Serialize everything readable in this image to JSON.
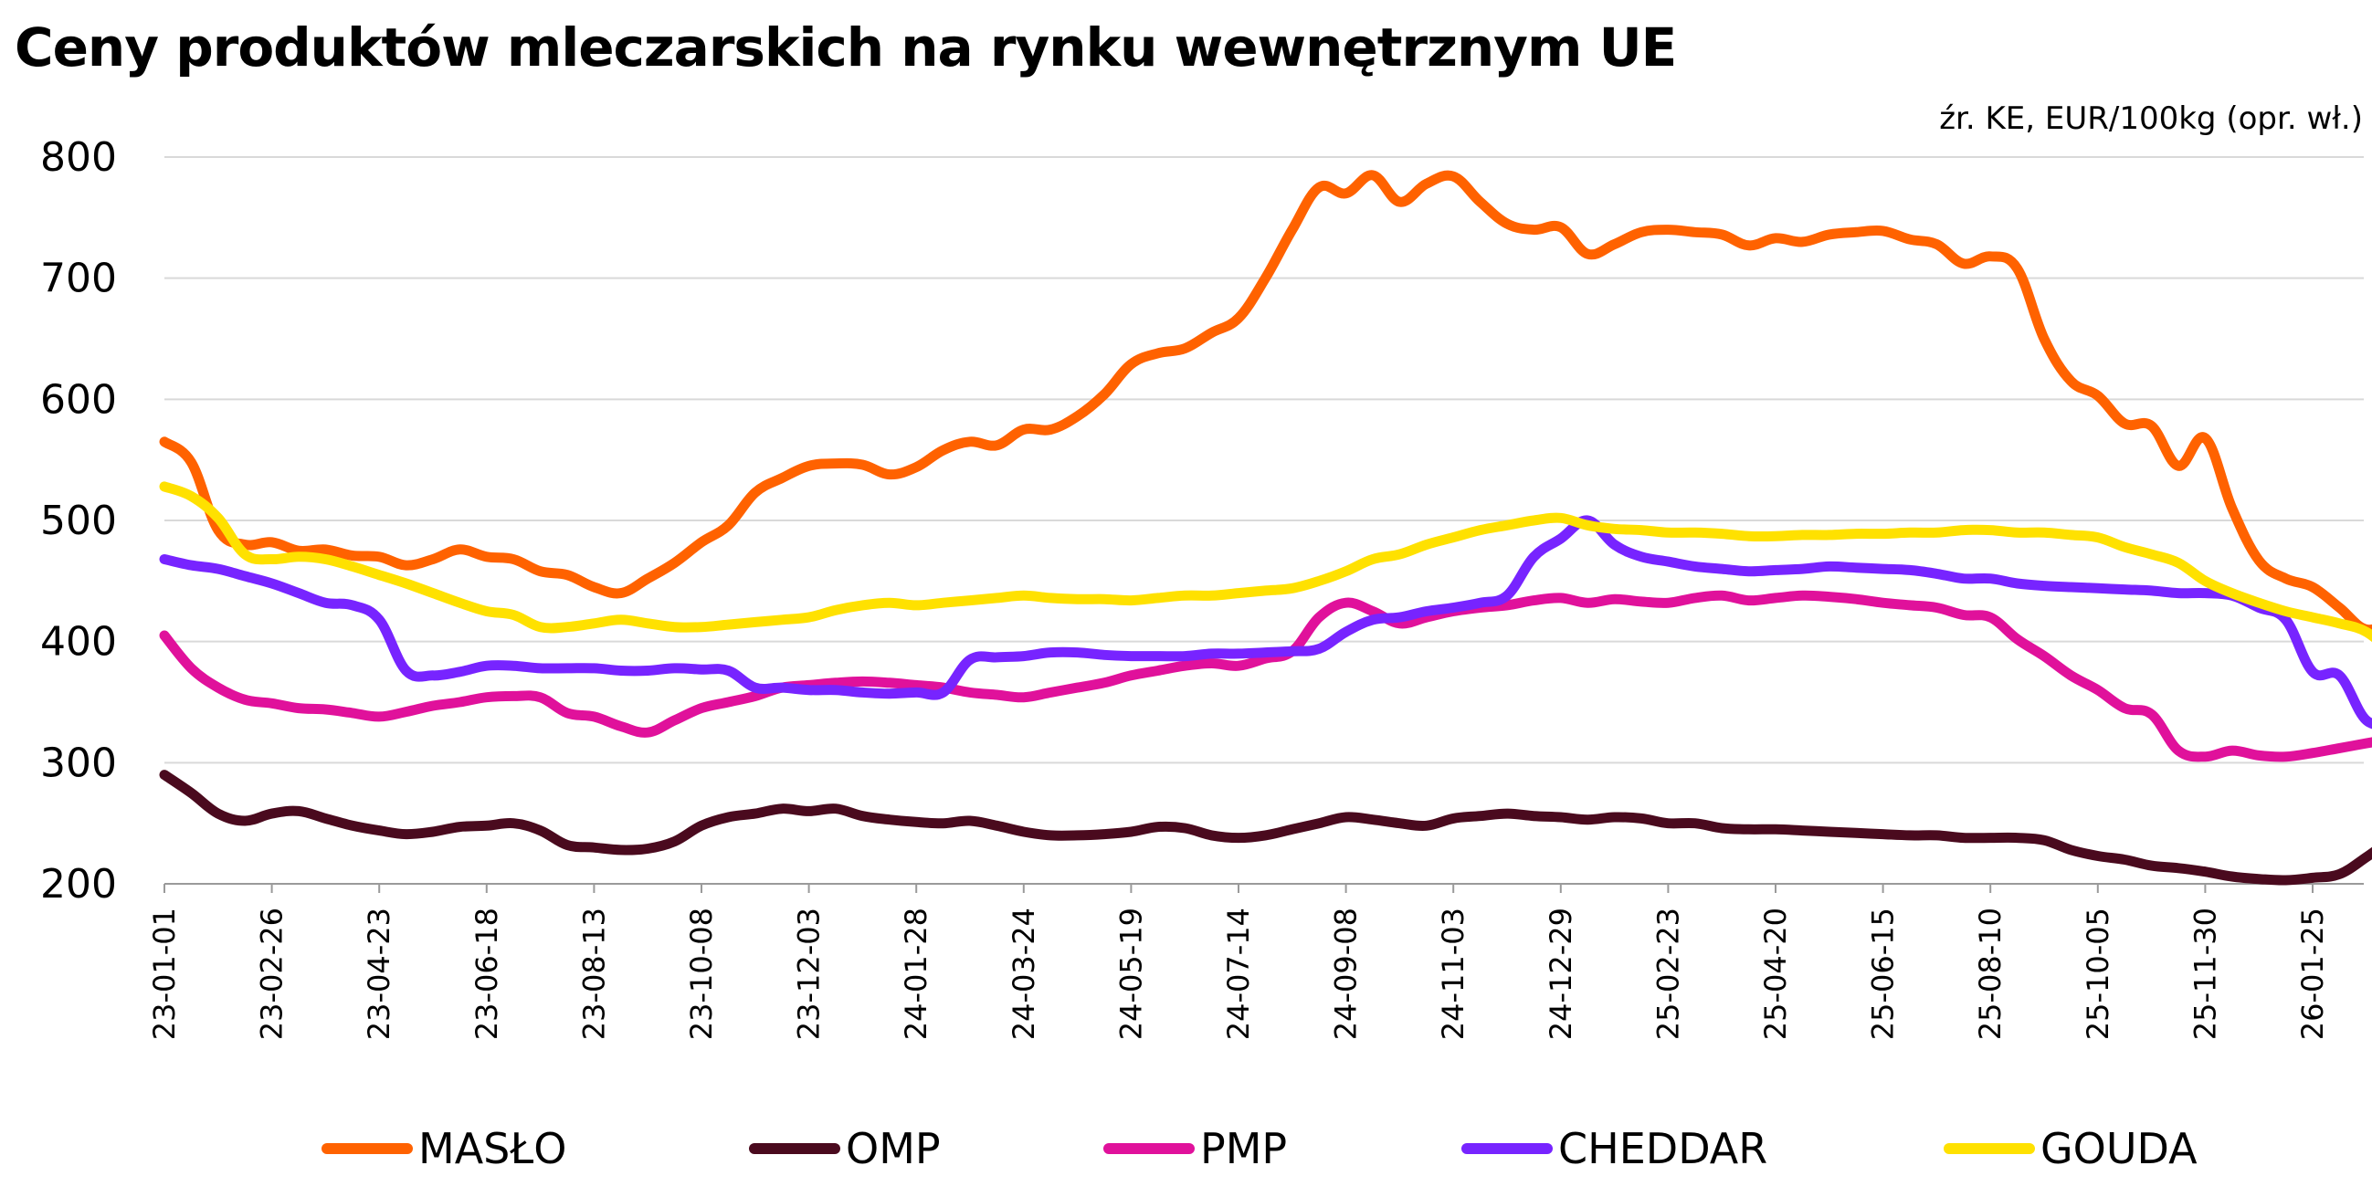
{
  "title": "Ceny produktów mleczarskich na rynku wewnętrznym UE",
  "source": "źr. KE, EUR/100kg (opr. wł.)",
  "chart_data": {
    "type": "line",
    "title": "Ceny produktów mleczarskich na rynku wewnętrznym UE",
    "ylabel": "",
    "xlabel": "",
    "ylim": [
      200,
      800
    ],
    "yticks": [
      200,
      300,
      400,
      500,
      600,
      700,
      800
    ],
    "x_tick_labels": [
      "23-01-01",
      "23-02-26",
      "23-04-23",
      "23-06-18",
      "23-08-13",
      "23-10-08",
      "23-12-03",
      "24-01-28",
      "24-03-24",
      "24-05-19",
      "24-07-14",
      "24-09-08",
      "24-11-03",
      "24-12-29",
      "25-02-23",
      "25-04-20",
      "25-06-15",
      "25-08-10",
      "25-10-05",
      "25-11-30",
      "26-01-25"
    ],
    "x_start": "2023-01-01",
    "x_step_days": 14,
    "grid": true,
    "legend_position": "bottom",
    "series": [
      {
        "name": "MASŁO",
        "color": "#FF6200",
        "values": [
          565,
          548,
          492,
          480,
          482,
          475,
          476,
          471,
          470,
          463,
          468,
          476,
          470,
          468,
          458,
          455,
          445,
          440,
          452,
          465,
          482,
          496,
          523,
          535,
          545,
          547,
          546,
          538,
          544,
          558,
          565,
          562,
          575,
          575,
          586,
          604,
          629,
          638,
          642,
          655,
          667,
          700,
          740,
          775,
          770,
          785,
          763,
          778,
          784,
          763,
          745,
          740,
          742,
          720,
          728,
          738,
          740,
          738,
          736,
          727,
          733,
          730,
          736,
          738,
          739,
          732,
          728,
          712,
          718,
          708,
          650,
          615,
          603,
          580,
          578,
          545,
          568,
          510,
          467,
          452,
          445,
          428,
          410,
          418
        ]
      },
      {
        "name": "OMP",
        "color": "#4A0A1E",
        "values": [
          290,
          275,
          258,
          252,
          258,
          260,
          254,
          248,
          244,
          241,
          243,
          247,
          248,
          250,
          244,
          232,
          230,
          228,
          229,
          235,
          248,
          255,
          258,
          262,
          260,
          262,
          256,
          253,
          251,
          250,
          252,
          248,
          243,
          240,
          240,
          241,
          243,
          247,
          246,
          240,
          238,
          240,
          245,
          250,
          255,
          253,
          250,
          248,
          254,
          256,
          258,
          256,
          255,
          253,
          255,
          254,
          250,
          250,
          246,
          245,
          245,
          244,
          243,
          242,
          241,
          240,
          240,
          238,
          238,
          238,
          236,
          228,
          223,
          220,
          215,
          213,
          210,
          206,
          204,
          203,
          205,
          208,
          222,
          238
        ]
      },
      {
        "name": "PMP",
        "color": "#E0119B",
        "values": [
          405,
          378,
          362,
          352,
          349,
          345,
          344,
          341,
          338,
          342,
          347,
          350,
          354,
          355,
          354,
          341,
          338,
          330,
          325,
          335,
          345,
          350,
          355,
          362,
          364,
          366,
          367,
          366,
          364,
          362,
          358,
          356,
          354,
          358,
          362,
          366,
          372,
          376,
          380,
          382,
          380,
          386,
          392,
          420,
          432,
          425,
          415,
          420,
          425,
          428,
          430,
          434,
          436,
          432,
          435,
          433,
          432,
          436,
          438,
          434,
          436,
          438,
          437,
          435,
          432,
          430,
          428,
          422,
          420,
          402,
          388,
          372,
          360,
          345,
          340,
          310,
          305,
          310,
          306,
          305,
          308,
          312,
          316,
          320
        ]
      },
      {
        "name": "CHEDDAR",
        "color": "#7724FF",
        "values": [
          468,
          463,
          460,
          454,
          448,
          440,
          432,
          430,
          418,
          376,
          372,
          375,
          380,
          380,
          378,
          378,
          378,
          376,
          376,
          378,
          377,
          376,
          362,
          362,
          360,
          360,
          358,
          357,
          358,
          358,
          385,
          387,
          388,
          391,
          391,
          389,
          388,
          388,
          388,
          390,
          390,
          391,
          392,
          394,
          408,
          418,
          420,
          425,
          428,
          432,
          438,
          470,
          485,
          500,
          480,
          470,
          466,
          462,
          460,
          458,
          459,
          460,
          462,
          461,
          460,
          459,
          456,
          452,
          452,
          448,
          446,
          445,
          444,
          443,
          442,
          440,
          440,
          438,
          428,
          418,
          375,
          372,
          335,
          333
        ]
      },
      {
        "name": "GOUDA",
        "color": "#FFE100",
        "values": [
          528,
          520,
          502,
          472,
          468,
          470,
          468,
          462,
          455,
          448,
          440,
          432,
          425,
          422,
          412,
          412,
          415,
          418,
          415,
          412,
          412,
          414,
          416,
          418,
          420,
          426,
          430,
          432,
          430,
          432,
          434,
          436,
          438,
          436,
          435,
          435,
          434,
          436,
          438,
          438,
          440,
          442,
          444,
          450,
          458,
          468,
          472,
          480,
          486,
          492,
          496,
          500,
          502,
          496,
          493,
          492,
          490,
          490,
          489,
          487,
          487,
          488,
          488,
          489,
          489,
          490,
          490,
          492,
          492,
          490,
          490,
          488,
          486,
          478,
          472,
          465,
          450,
          440,
          432,
          425,
          420,
          415,
          408,
          390
        ]
      }
    ]
  },
  "legend": [
    {
      "label": "MASŁO",
      "color": "#FF6200"
    },
    {
      "label": "OMP",
      "color": "#4A0A1E"
    },
    {
      "label": "PMP",
      "color": "#E0119B"
    },
    {
      "label": "CHEDDAR",
      "color": "#7724FF"
    },
    {
      "label": "GOUDA",
      "color": "#FFE100"
    }
  ]
}
